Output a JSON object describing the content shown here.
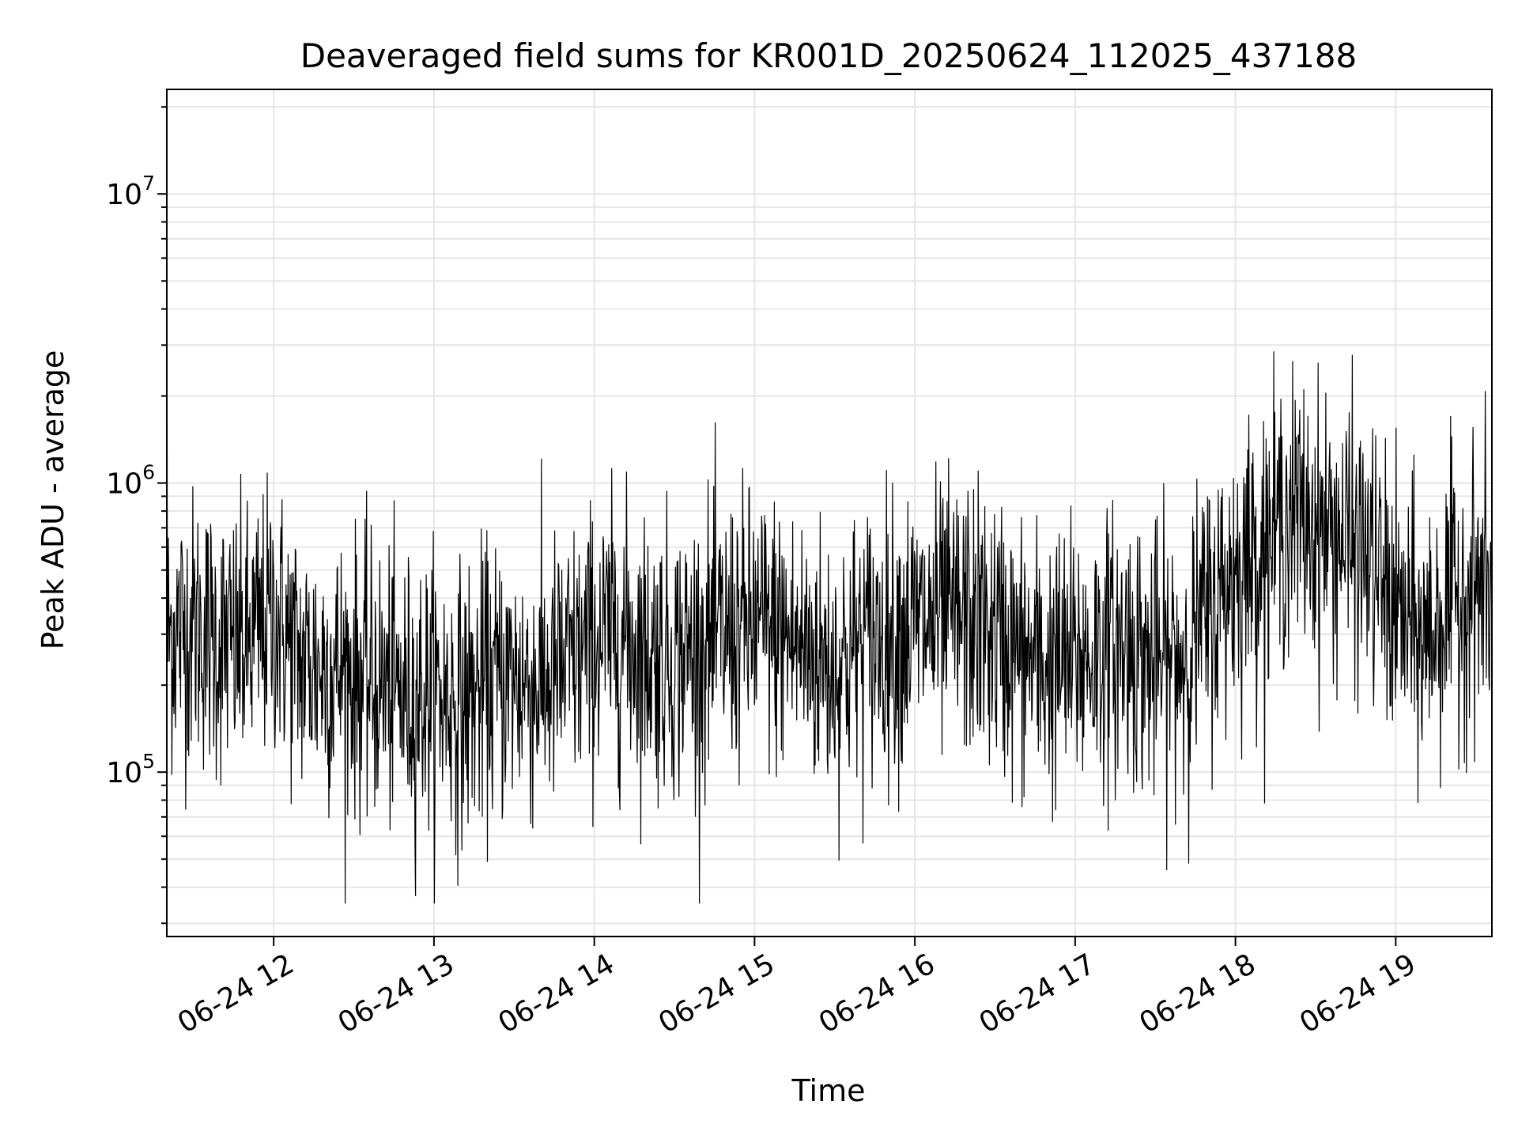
{
  "chart_data": {
    "type": "line",
    "title": "Deaveraged field sums for KR001D_20250624_112025_437188",
    "xlabel": "Time",
    "ylabel": "Peak ADU - average",
    "yscale": "log",
    "ylim": [
      27000,
      23000000
    ],
    "xlim": [
      "2025-06-24T11:20",
      "2025-06-24T19:36"
    ],
    "grid": true,
    "line_color": "#000000",
    "x_ticks": [
      "06-24 12",
      "06-24 13",
      "06-24 14",
      "06-24 15",
      "06-24 16",
      "06-24 17",
      "06-24 18",
      "06-24 19"
    ],
    "y_ticks": [
      {
        "base": "10",
        "exp": "5",
        "value": 100000
      },
      {
        "base": "10",
        "exp": "6",
        "value": 1000000
      },
      {
        "base": "10",
        "exp": "7",
        "value": 10000000
      }
    ],
    "series": [
      {
        "x": [
          "2025-06-24T11:20",
          "2025-06-24T11:30",
          "2025-06-24T11:40",
          "2025-06-24T11:50",
          "2025-06-24T12:00",
          "2025-06-24T12:10",
          "2025-06-24T12:20",
          "2025-06-24T12:30",
          "2025-06-24T12:40",
          "2025-06-24T12:50",
          "2025-06-24T13:00",
          "2025-06-24T13:10",
          "2025-06-24T13:20",
          "2025-06-24T13:30",
          "2025-06-24T13:40",
          "2025-06-24T13:50",
          "2025-06-24T14:00",
          "2025-06-24T14:10",
          "2025-06-24T14:20",
          "2025-06-24T14:30",
          "2025-06-24T14:40",
          "2025-06-24T14:50",
          "2025-06-24T15:00",
          "2025-06-24T15:10",
          "2025-06-24T15:20",
          "2025-06-24T15:30",
          "2025-06-24T15:40",
          "2025-06-24T15:50",
          "2025-06-24T16:00",
          "2025-06-24T16:10",
          "2025-06-24T16:20",
          "2025-06-24T16:30",
          "2025-06-24T16:40",
          "2025-06-24T16:50",
          "2025-06-24T17:00",
          "2025-06-24T17:10",
          "2025-06-24T17:20",
          "2025-06-24T17:30",
          "2025-06-24T17:40",
          "2025-06-24T17:50",
          "2025-06-24T18:00",
          "2025-06-24T18:10",
          "2025-06-24T18:20",
          "2025-06-24T18:30",
          "2025-06-24T18:40",
          "2025-06-24T18:50",
          "2025-06-24T19:00",
          "2025-06-24T19:10",
          "2025-06-24T19:20",
          "2025-06-24T19:30",
          "2025-06-24T19:36"
        ],
        "values": [
          300000,
          320000,
          280000,
          270000,
          350000,
          240000,
          230000,
          220000,
          200000,
          180000,
          190000,
          170000,
          200000,
          210000,
          200000,
          230000,
          280000,
          300000,
          260000,
          250000,
          270000,
          300000,
          320000,
          300000,
          260000,
          230000,
          280000,
          300000,
          320000,
          330000,
          340000,
          300000,
          250000,
          230000,
          240000,
          260000,
          280000,
          230000,
          250000,
          350000,
          500000,
          600000,
          800000,
          700000,
          650000,
          550000,
          350000,
          280000,
          380000,
          450000,
          400000
        ]
      }
    ]
  }
}
